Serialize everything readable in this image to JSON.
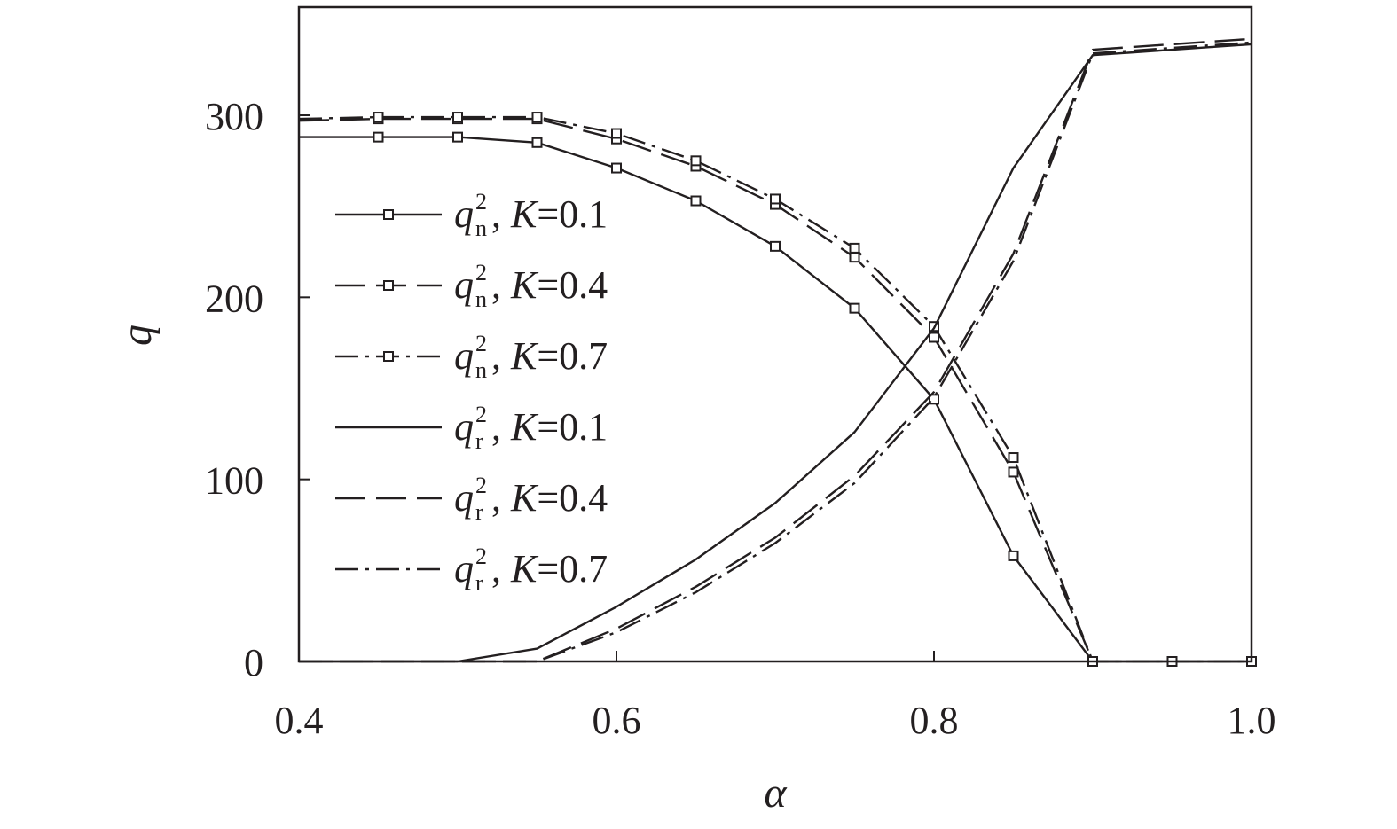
{
  "chart_data": {
    "type": "line",
    "xlabel": "α",
    "ylabel": "q",
    "xlim": [
      0.4,
      1.0
    ],
    "ylim": [
      0,
      350
    ],
    "x_ticks": [
      0.4,
      0.6,
      0.8,
      1.0
    ],
    "x_tick_labels": [
      "0.4",
      "0.6",
      "0.8",
      "1.0"
    ],
    "y_ticks": [
      0,
      100,
      200,
      300
    ],
    "y_tick_labels": [
      "0",
      "100",
      "200",
      "300"
    ],
    "grid": false,
    "legend_position": "left",
    "x": [
      0.4,
      0.45,
      0.5,
      0.55,
      0.6,
      0.65,
      0.7,
      0.75,
      0.8,
      0.85,
      0.9,
      0.95,
      1.0
    ],
    "series": [
      {
        "name": "q_n^2, K=0.1",
        "base": "q",
        "sub": "n",
        "sup": "2",
        "k_label": "K",
        "k_value": "=0.1",
        "style": "solid",
        "markers": true,
        "values": [
          288,
          288,
          288,
          285,
          271,
          253,
          228,
          194,
          144,
          58,
          0,
          0,
          0
        ]
      },
      {
        "name": "q_n^2, K=0.4",
        "base": "q",
        "sub": "n",
        "sup": "2",
        "k_label": "K",
        "k_value": "=0.4",
        "style": "dashed",
        "markers": true,
        "values": [
          297,
          298,
          298,
          298,
          287,
          272,
          251,
          222,
          178,
          104,
          0,
          0,
          0
        ]
      },
      {
        "name": "q_n^2, K=0.7",
        "base": "q",
        "sub": "n",
        "sup": "2",
        "k_label": "K",
        "k_value": "=0.7",
        "style": "dashdot",
        "markers": true,
        "values": [
          298,
          299,
          299,
          299,
          290,
          275,
          254,
          227,
          184,
          112,
          0,
          0,
          0
        ]
      },
      {
        "name": "q_r^2, K=0.1",
        "base": "q",
        "sub": "r",
        "sup": "2",
        "k_label": "K",
        "k_value": "=0.1",
        "style": "solid",
        "markers": false,
        "values": [
          0,
          0,
          0,
          7,
          30,
          56,
          87,
          126,
          183,
          271,
          333,
          336,
          339
        ]
      },
      {
        "name": "q_r^2, K=0.4",
        "base": "q",
        "sub": "r",
        "sup": "2",
        "k_label": "K",
        "k_value": "=0.4",
        "style": "dashed",
        "markers": false,
        "values": [
          0,
          0,
          0,
          0,
          18,
          41,
          68,
          102,
          148,
          224,
          336,
          339,
          342
        ]
      },
      {
        "name": "q_r^2, K=0.7",
        "base": "q",
        "sub": "r",
        "sup": "2",
        "k_label": "K",
        "k_value": "=0.7",
        "style": "dashdot",
        "markers": false,
        "values": [
          0,
          0,
          0,
          0,
          16,
          38,
          65,
          98,
          145,
          220,
          334,
          337,
          340
        ]
      }
    ]
  }
}
